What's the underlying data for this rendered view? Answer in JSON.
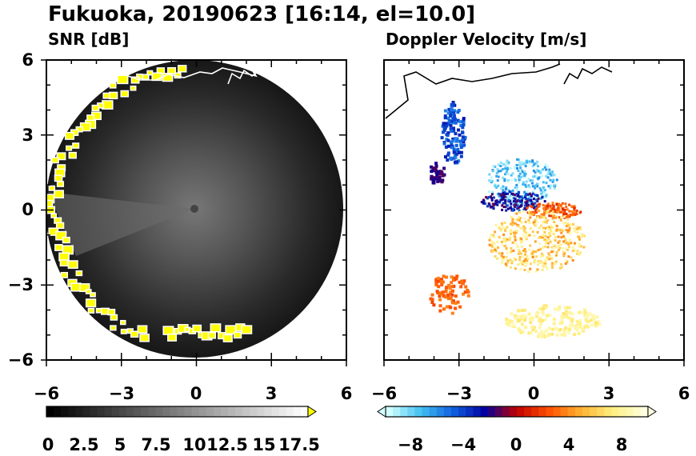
{
  "title": "Fukuoka, 20190623 [16:14, el=10.0]",
  "chart_data": [
    {
      "type": "heatmap",
      "title": "SNR [dB]",
      "xlim": [
        -6,
        6
      ],
      "ylim": [
        -6,
        6
      ],
      "xticks": [
        "−6",
        "−3",
        "0",
        "3",
        "6"
      ],
      "yticks": [
        "6",
        "3",
        "0",
        "−3",
        "−6"
      ],
      "colorbar": {
        "ticks": [
          "0",
          "2.5",
          "5",
          "7.5",
          "10",
          "12.5",
          "15",
          "17.5"
        ],
        "range": [
          0,
          18
        ],
        "extend": "max",
        "colors": [
          "#000000",
          "#ffffff"
        ],
        "over_color": "#ffff00"
      }
    },
    {
      "type": "heatmap",
      "title": "Doppler Velocity [m/s]",
      "xlim": [
        -6,
        6
      ],
      "ylim": [
        -6,
        6
      ],
      "xticks": [
        "−6",
        "−3",
        "0",
        "3",
        "6"
      ],
      "colorbar": {
        "ticks": [
          "−8",
          "−4",
          "0",
          "4",
          "8"
        ],
        "range": [
          -10,
          10
        ],
        "extend": "both",
        "colors": [
          "#d0ffff",
          "#40c0f0",
          "#1060e0",
          "#0000a0",
          "#c00000",
          "#ff5000",
          "#ffb030",
          "#fff080",
          "#ffffe0"
        ]
      }
    }
  ]
}
